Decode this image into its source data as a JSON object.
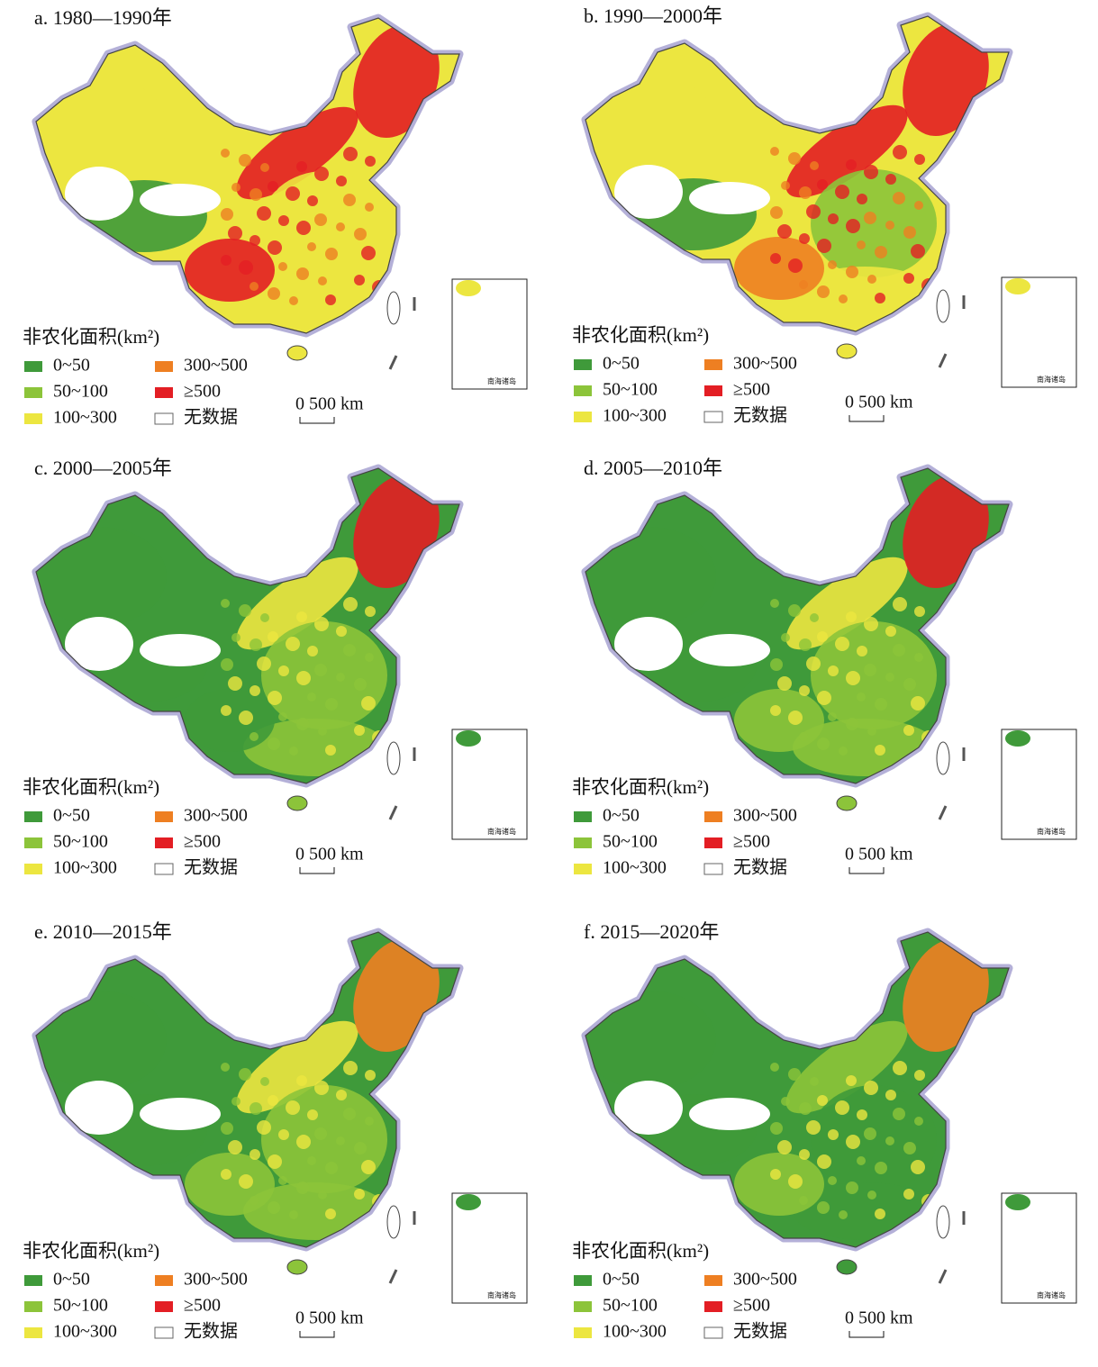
{
  "panels": [
    {
      "title": "a. 1980—1990年",
      "legend_title": "非农化面积(km²)",
      "legend": [
        {
          "label": "0~50",
          "color": "#3f9a3a"
        },
        {
          "label": "50~100",
          "color": "#8cc43a"
        },
        {
          "label": "100~300",
          "color": "#ece640"
        },
        {
          "label": "300~500",
          "color": "#ee7f22"
        },
        {
          "label": "≥500",
          "color": "#e31e24"
        },
        {
          "label": "无数据",
          "color": "#ffffff"
        }
      ],
      "scale_label": "0  500 km",
      "inset_label": "南海诸岛"
    },
    {
      "title": "b. 1990—2000年",
      "legend_title": "非农化面积(km²)",
      "legend": [
        {
          "label": "0~50",
          "color": "#3f9a3a"
        },
        {
          "label": "50~100",
          "color": "#8cc43a"
        },
        {
          "label": "100~300",
          "color": "#ece640"
        },
        {
          "label": "300~500",
          "color": "#ee7f22"
        },
        {
          "label": "≥500",
          "color": "#e31e24"
        },
        {
          "label": "无数据",
          "color": "#ffffff"
        }
      ],
      "scale_label": "0  500 km",
      "inset_label": "南海诸岛"
    },
    {
      "title": "c. 2000—2005年",
      "legend_title": "非农化面积(km²)",
      "legend": [
        {
          "label": "0~50",
          "color": "#3f9a3a"
        },
        {
          "label": "50~100",
          "color": "#8cc43a"
        },
        {
          "label": "100~300",
          "color": "#ece640"
        },
        {
          "label": "300~500",
          "color": "#ee7f22"
        },
        {
          "label": "≥500",
          "color": "#e31e24"
        },
        {
          "label": "无数据",
          "color": "#ffffff"
        }
      ],
      "scale_label": "0  500 km",
      "inset_label": "南海诸岛"
    },
    {
      "title": "d. 2005—2010年",
      "legend_title": "非农化面积(km²)",
      "legend": [
        {
          "label": "0~50",
          "color": "#3f9a3a"
        },
        {
          "label": "50~100",
          "color": "#8cc43a"
        },
        {
          "label": "100~300",
          "color": "#ece640"
        },
        {
          "label": "300~500",
          "color": "#ee7f22"
        },
        {
          "label": "≥500",
          "color": "#e31e24"
        },
        {
          "label": "无数据",
          "color": "#ffffff"
        }
      ],
      "scale_label": "0  500 km",
      "inset_label": "南海诸岛"
    },
    {
      "title": "e. 2010—2015年",
      "legend_title": "非农化面积(km²)",
      "legend": [
        {
          "label": "0~50",
          "color": "#3f9a3a"
        },
        {
          "label": "50~100",
          "color": "#8cc43a"
        },
        {
          "label": "100~300",
          "color": "#ece640"
        },
        {
          "label": "300~500",
          "color": "#ee7f22"
        },
        {
          "label": "≥500",
          "color": "#e31e24"
        },
        {
          "label": "无数据",
          "color": "#ffffff"
        }
      ],
      "scale_label": "0  500 km",
      "inset_label": "南海诸岛"
    },
    {
      "title": "f. 2015—2020年",
      "legend_title": "非农化面积(km²)",
      "legend": [
        {
          "label": "0~50",
          "color": "#3f9a3a"
        },
        {
          "label": "50~100",
          "color": "#8cc43a"
        },
        {
          "label": "100~300",
          "color": "#ece640"
        },
        {
          "label": "300~500",
          "color": "#ee7f22"
        },
        {
          "label": "≥500",
          "color": "#e31e24"
        },
        {
          "label": "无数据",
          "color": "#ffffff"
        }
      ],
      "scale_label": "0  500 km",
      "inset_label": "南海诸岛"
    }
  ]
}
